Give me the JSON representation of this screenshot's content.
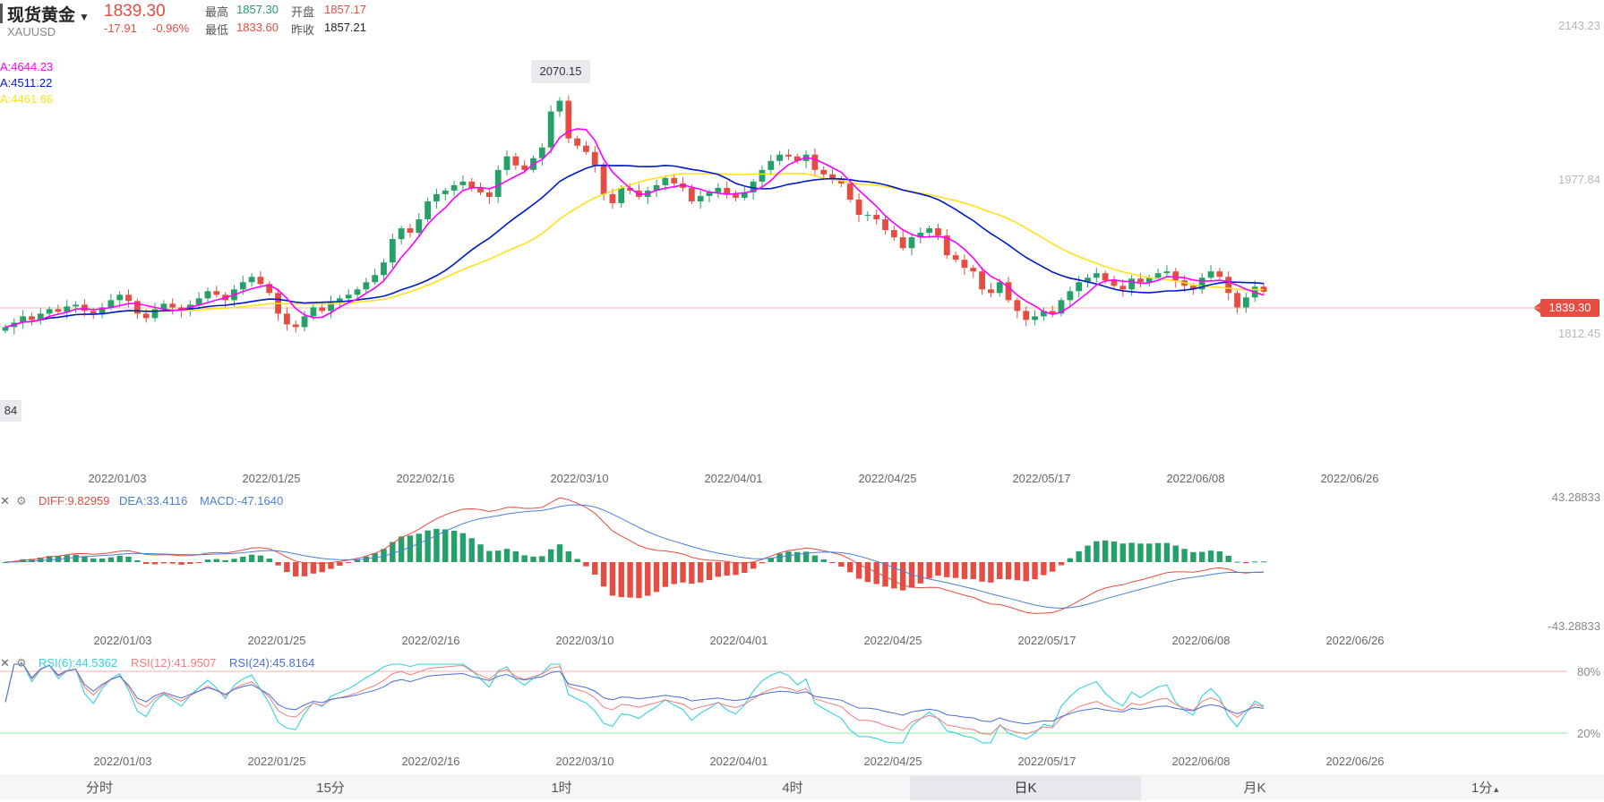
{
  "header": {
    "name": "现货黄金",
    "symbol": "XAUUSD",
    "price": "1839.30",
    "change": "-17.91",
    "change_pct": "-0.96%",
    "high_label": "最高",
    "high": "1857.30",
    "open_label": "开盘",
    "open": "1857.17",
    "low_label": "最低",
    "low": "1833.60",
    "prev_label": "昨收",
    "prev_close": "1857.21"
  },
  "ma": {
    "ma1": "A:4644.23",
    "ma2": "A:4511.22",
    "ma3": "A:4461.66"
  },
  "price_axis": {
    "top": "2143.23",
    "mid": "1977.84",
    "low": "1812.45",
    "current": "1839.30",
    "left_tag": "84",
    "max_tag": "2070.15"
  },
  "macd": {
    "diff": "DIFF:9.82959",
    "dea": "DEA:33.4116",
    "macd": "MACD:-47.1640",
    "top": "43.28833",
    "bottom": "-43.28833"
  },
  "rsi": {
    "rsi6": "RSI(6):44.5362",
    "rsi12": "RSI(12):41.9507",
    "rsi24": "RSI(24):45.8164",
    "l80": "80%",
    "l20": "20%"
  },
  "tabs": [
    "分时",
    "15分",
    "1时",
    "4时",
    "日K",
    "月K",
    "1分"
  ],
  "colors": {
    "up": "#26a069",
    "down": "#e54d42",
    "ma1": "#ff00ff",
    "ma2": "#0019cc",
    "ma3": "#ffe11a"
  },
  "chart_data": {
    "type": "candlestick",
    "title": "现货黄金 XAUUSD 日K",
    "x_ticks": [
      "2022/01/03",
      "2022/01/25",
      "2022/02/16",
      "2022/03/10",
      "2022/04/01",
      "2022/04/25",
      "2022/05/17",
      "2022/06/08",
      "2022/06/26"
    ],
    "ylim": [
      1646,
      2143.23
    ],
    "y_ticks": [
      2143.23,
      1977.84,
      1812.45
    ],
    "current_price": 1839.3,
    "max_point": 2070.15,
    "candles_close": [
      1800,
      1805,
      1812,
      1808,
      1815,
      1820,
      1817,
      1823,
      1825,
      1818,
      1814,
      1822,
      1830,
      1836,
      1829,
      1815,
      1810,
      1820,
      1826,
      1822,
      1818,
      1825,
      1832,
      1840,
      1836,
      1830,
      1842,
      1850,
      1856,
      1848,
      1838,
      1815,
      1803,
      1800,
      1812,
      1822,
      1818,
      1828,
      1832,
      1836,
      1842,
      1850,
      1858,
      1872,
      1898,
      1910,
      1905,
      1920,
      1940,
      1948,
      1952,
      1958,
      1962,
      1955,
      1950,
      1945,
      1975,
      1990,
      1980,
      1975,
      1988,
      2000,
      2040,
      2052,
      2010,
      2002,
      1995,
      1980,
      1948,
      1938,
      1955,
      1952,
      1945,
      1952,
      1958,
      1966,
      1960,
      1955,
      1940,
      1946,
      1950,
      1955,
      1948,
      1944,
      1950,
      1962,
      1975,
      1985,
      1992,
      1990,
      1985,
      1992,
      1975,
      1970,
      1965,
      1960,
      1942,
      1925,
      1925,
      1920,
      1908,
      1900,
      1888,
      1900,
      1905,
      1910,
      1902,
      1880,
      1875,
      1866,
      1862,
      1842,
      1838,
      1850,
      1830,
      1818,
      1808,
      1812,
      1818,
      1815,
      1830,
      1840,
      1850,
      1855,
      1860,
      1852,
      1846,
      1842,
      1854,
      1850,
      1855,
      1860,
      1862,
      1852,
      1846,
      1842,
      1855,
      1862,
      1856,
      1838,
      1822,
      1833,
      1845,
      1839.3
    ],
    "diff": {
      "current": 9.82959,
      "ylim": [
        -43.28833,
        43.28833
      ]
    },
    "dea": {
      "current": 33.4116
    },
    "macd": {
      "current": -47.164
    },
    "rsi": {
      "rsi6": 44.5362,
      "rsi12": 41.9507,
      "rsi24": 45.8164,
      "levels": [
        80,
        20
      ]
    }
  }
}
